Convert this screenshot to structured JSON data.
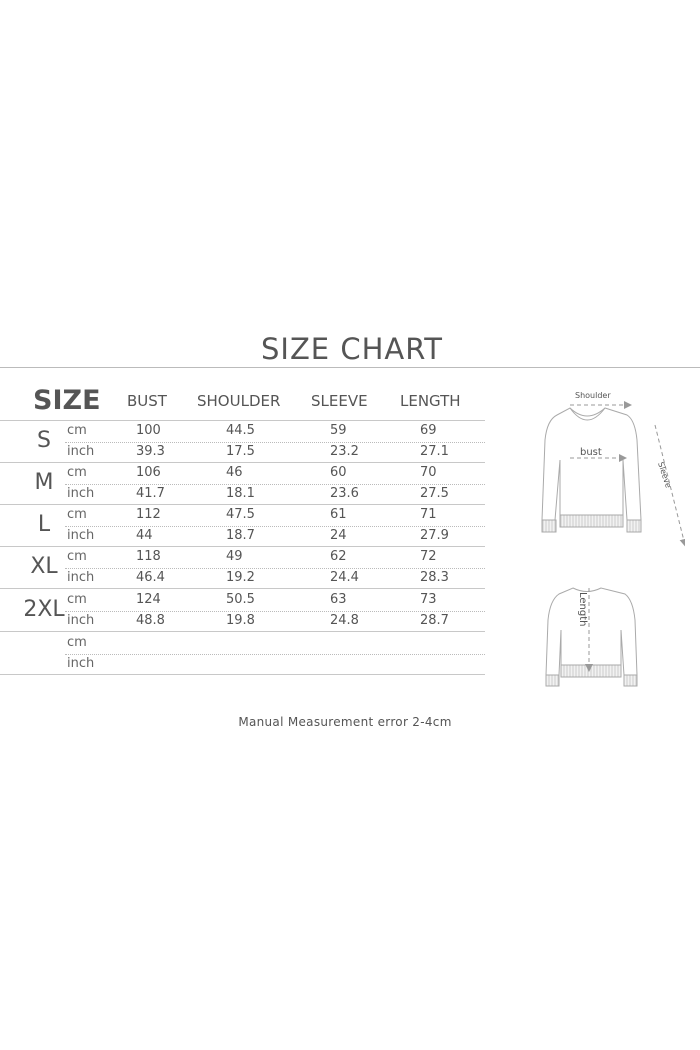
{
  "title": "SIZE CHART",
  "columns": {
    "size": "SIZE",
    "bust": "BUST",
    "shoulder": "SHOULDER",
    "sleeve": "SLEEVE",
    "length": "LENGTH"
  },
  "units": {
    "cm": "cm",
    "inch": "inch"
  },
  "rows": [
    {
      "size": "S",
      "cm": [
        "100",
        "44.5",
        "59",
        "69"
      ],
      "inch": [
        "39.3",
        "17.5",
        "23.2",
        "27.1"
      ]
    },
    {
      "size": "M",
      "cm": [
        "106",
        "46",
        "60",
        "70"
      ],
      "inch": [
        "41.7",
        "18.1",
        "23.6",
        "27.5"
      ]
    },
    {
      "size": "L",
      "cm": [
        "112",
        "47.5",
        "61",
        "71"
      ],
      "inch": [
        "44",
        "18.7",
        "24",
        "27.9"
      ]
    },
    {
      "size": "XL",
      "cm": [
        "118",
        "49",
        "62",
        "72"
      ],
      "inch": [
        "46.4",
        "19.2",
        "24.4",
        "28.3"
      ]
    },
    {
      "size": "2XL",
      "cm": [
        "124",
        "50.5",
        "63",
        "73"
      ],
      "inch": [
        "48.8",
        "19.8",
        "24.8",
        "28.7"
      ]
    },
    {
      "size": "",
      "cm": [
        "",
        "",
        "",
        ""
      ],
      "inch": [
        "",
        "",
        "",
        ""
      ]
    }
  ],
  "diagram": {
    "shoulder": "Shoulder",
    "bust": "bust",
    "sleeve": "Sleeve",
    "length": "Length"
  },
  "note": "Manual Measurement error 2-4cm"
}
